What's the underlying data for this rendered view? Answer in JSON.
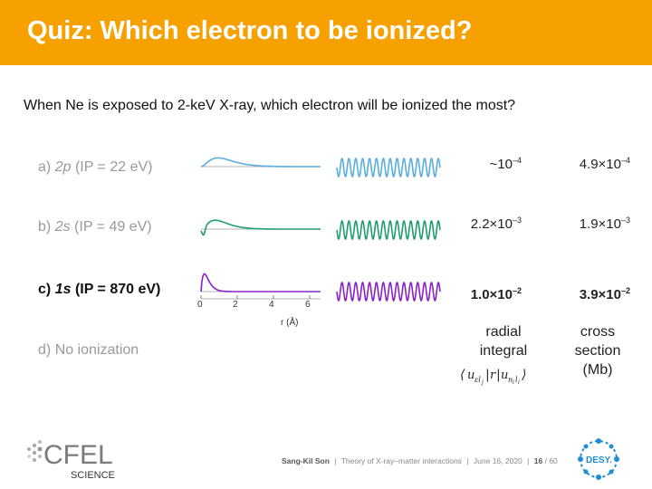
{
  "title": "Quiz: Which electron to be ionized?",
  "question": "When Ne is exposed to 2-keV X-ray, which electron will be ionized the most?",
  "options": [
    {
      "letter": "a)",
      "orbital": "2p",
      "ip": "(IP = 22 eV)",
      "radial": "~10",
      "radial_exp": "–4",
      "cross": "4.9×10",
      "cross_exp": "–4",
      "color": "#5AAEE0"
    },
    {
      "letter": "b)",
      "orbital": "2s",
      "ip": "(IP = 49 eV)",
      "radial": "2.2×10",
      "radial_exp": "–3",
      "cross": "1.9×10",
      "cross_exp": "–3",
      "color": "#1E9E6E"
    },
    {
      "letter": "c)",
      "orbital": "1s",
      "ip": "(IP = 870 eV)",
      "radial": "1.0×10",
      "radial_exp": "–2",
      "cross": "3.9×10",
      "cross_exp": "–2",
      "color": "#8A22C8"
    },
    {
      "letter": "d)",
      "label": "No ionization"
    }
  ],
  "axis": {
    "ticks": [
      "0",
      "2",
      "4",
      "6"
    ],
    "label": "r (Å)"
  },
  "columns": {
    "radial": "radial\nintegral",
    "cross": "cross\nsection\n(Mb)"
  },
  "footer": {
    "author": "Sang-Kil Son",
    "separator": "|",
    "talk": "Theory of X-ray–matter interactions",
    "date": "June 16, 2020",
    "page": "16",
    "total": "/ 60"
  },
  "logos": {
    "cfel": "CFEL",
    "cfel_sub": "SCIENCE",
    "desy": "DESY."
  }
}
